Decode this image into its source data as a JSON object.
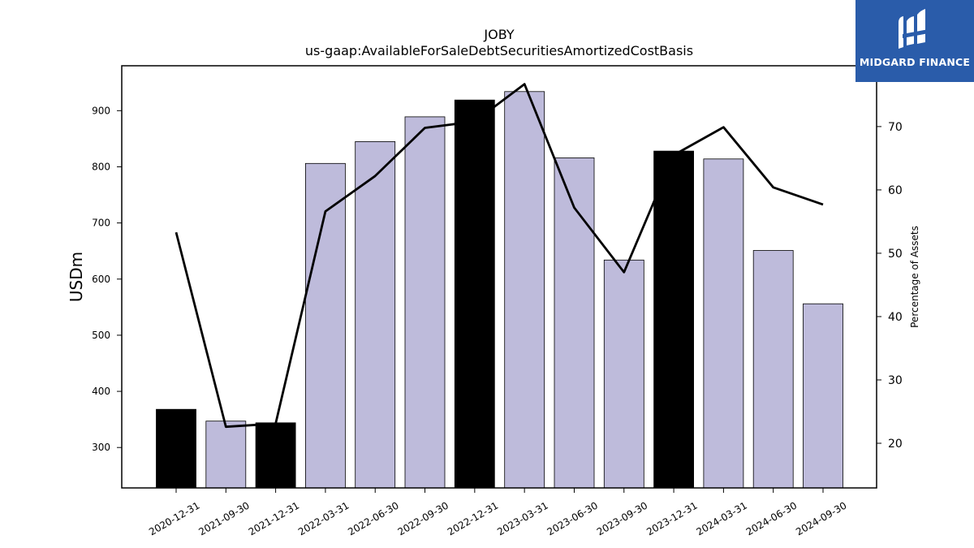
{
  "brand": {
    "name": "MIDGARD FINANCE",
    "icon": "midgard-m-logo-icon",
    "background": "#2a5caa"
  },
  "chart_data": {
    "type": "bar",
    "title": "JOBY",
    "subtitle": "us-gaap:AvailableForSaleDebtSecuritiesAmortizedCostBasis",
    "ylabel": "USDm",
    "y2label": "Percentage of Assets",
    "categories": [
      "2020-12-31",
      "2021-09-30",
      "2021-12-31",
      "2022-03-31",
      "2022-06-30",
      "2022-09-30",
      "2022-12-31",
      "2023-03-31",
      "2023-06-30",
      "2023-09-30",
      "2023-12-31",
      "2024-03-31",
      "2024-06-30",
      "2024-09-30"
    ],
    "values": [
      368,
      347,
      344,
      806,
      845,
      889,
      919,
      934,
      816,
      634,
      828,
      814,
      651,
      556
    ],
    "bar_fill": [
      "#000000",
      "#bebbdb",
      "#000000",
      "#bebbdb",
      "#bebbdb",
      "#bebbdb",
      "#000000",
      "#bebbdb",
      "#bebbdb",
      "#bebbdb",
      "#000000",
      "#bebbdb",
      "#bebbdb",
      "#bebbdb"
    ],
    "line": {
      "axis": "right",
      "color": "#000000",
      "values": [
        53.3,
        22.6,
        23.1,
        56.6,
        62.2,
        69.8,
        70.8,
        76.7,
        57.2,
        47.0,
        65.5,
        69.9,
        60.4,
        57.7
      ]
    },
    "ylim": [
      228,
      980
    ],
    "y2lim": [
      12.95,
      79.6
    ],
    "yticks": [
      300,
      400,
      500,
      600,
      700,
      800,
      900
    ],
    "y2ticks": [
      20,
      30,
      40,
      50,
      60,
      70
    ],
    "grid": false
  }
}
